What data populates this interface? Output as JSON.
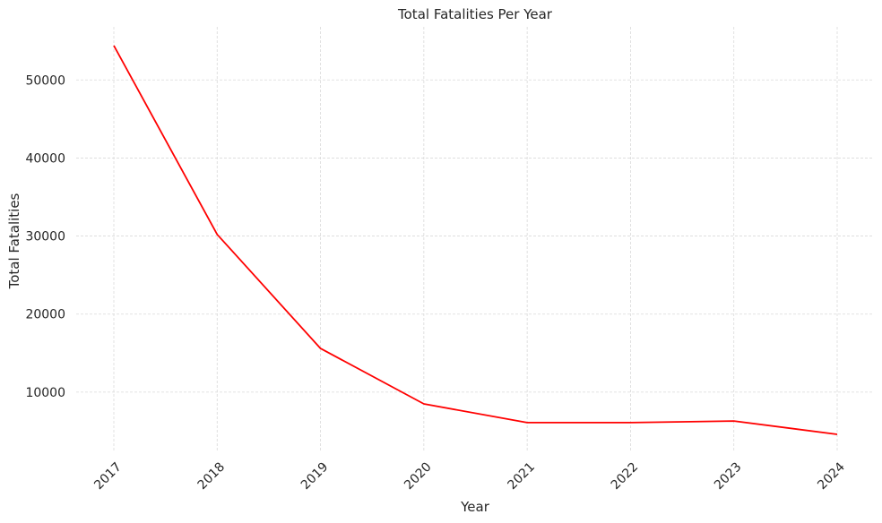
{
  "chart_data": {
    "type": "line",
    "title": "Total Fatalities Per Year",
    "xlabel": "Year",
    "ylabel": "Total Fatalities",
    "categories": [
      "2017",
      "2018",
      "2019",
      "2020",
      "2021",
      "2022",
      "2023",
      "2024"
    ],
    "series": [
      {
        "values": [
          54400,
          30200,
          15600,
          8500,
          6100,
          6100,
          6300,
          4600
        ]
      }
    ],
    "ylim": [
      2300,
      56800
    ],
    "yticks": [
      10000,
      20000,
      30000,
      40000,
      50000
    ],
    "grid": true,
    "x_tick_rotation": -45,
    "colors": {
      "line": "#ff0000",
      "grid": "#d9d9d9",
      "text": "#262626"
    }
  }
}
